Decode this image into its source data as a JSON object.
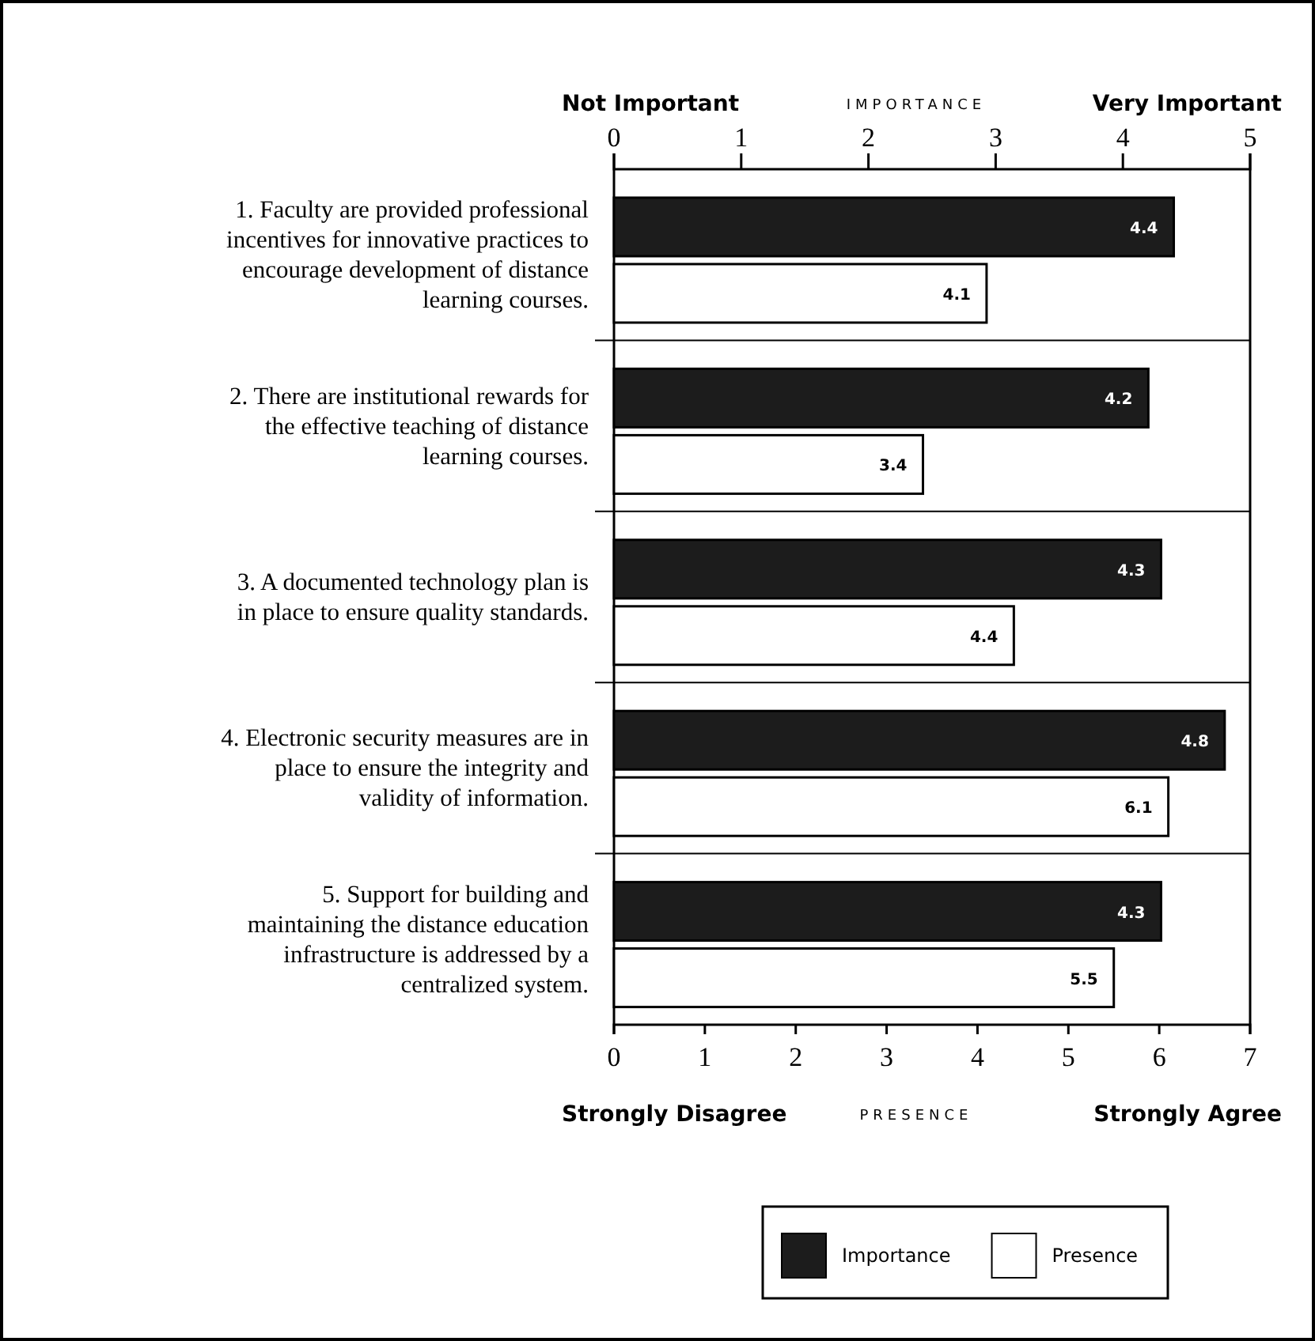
{
  "chart_data": {
    "type": "bar",
    "orientation": "horizontal",
    "categories": [
      "1. Faculty are provided professional incentives for innovative practices to encourage development of distance learning courses.",
      "2. There are institutional rewards for the effective teaching of distance learning courses.",
      "3. A documented technology plan is in place to ensure quality standards.",
      "4. Electronic security measures are in place to ensure the integrity and validity of information.",
      "5. Support for building and maintaining the distance education infrastructure is addressed by a centralized system."
    ],
    "series": [
      {
        "name": "Importance",
        "color": "#1c1c1c",
        "axis": "x2",
        "values": [
          4.4,
          4.2,
          4.3,
          4.8,
          4.3
        ]
      },
      {
        "name": "Presence",
        "color": "#ffffff",
        "values": [
          4.1,
          3.4,
          4.4,
          6.1,
          5.5
        ]
      }
    ],
    "xlim": [
      0,
      7
    ],
    "xticks": [
      0,
      1,
      2,
      3,
      4,
      5,
      6,
      7
    ],
    "xlabel": "PRESENCE",
    "x2lim": [
      0,
      5
    ],
    "x2ticks": [
      0,
      1,
      2,
      3,
      4,
      5
    ],
    "x2label": "IMPORTANCE",
    "annotations": [
      "Not Important",
      "Very Important",
      "Strongly Disagree",
      "Strongly Agree"
    ],
    "data_labels": true,
    "legend": "bottom"
  }
}
